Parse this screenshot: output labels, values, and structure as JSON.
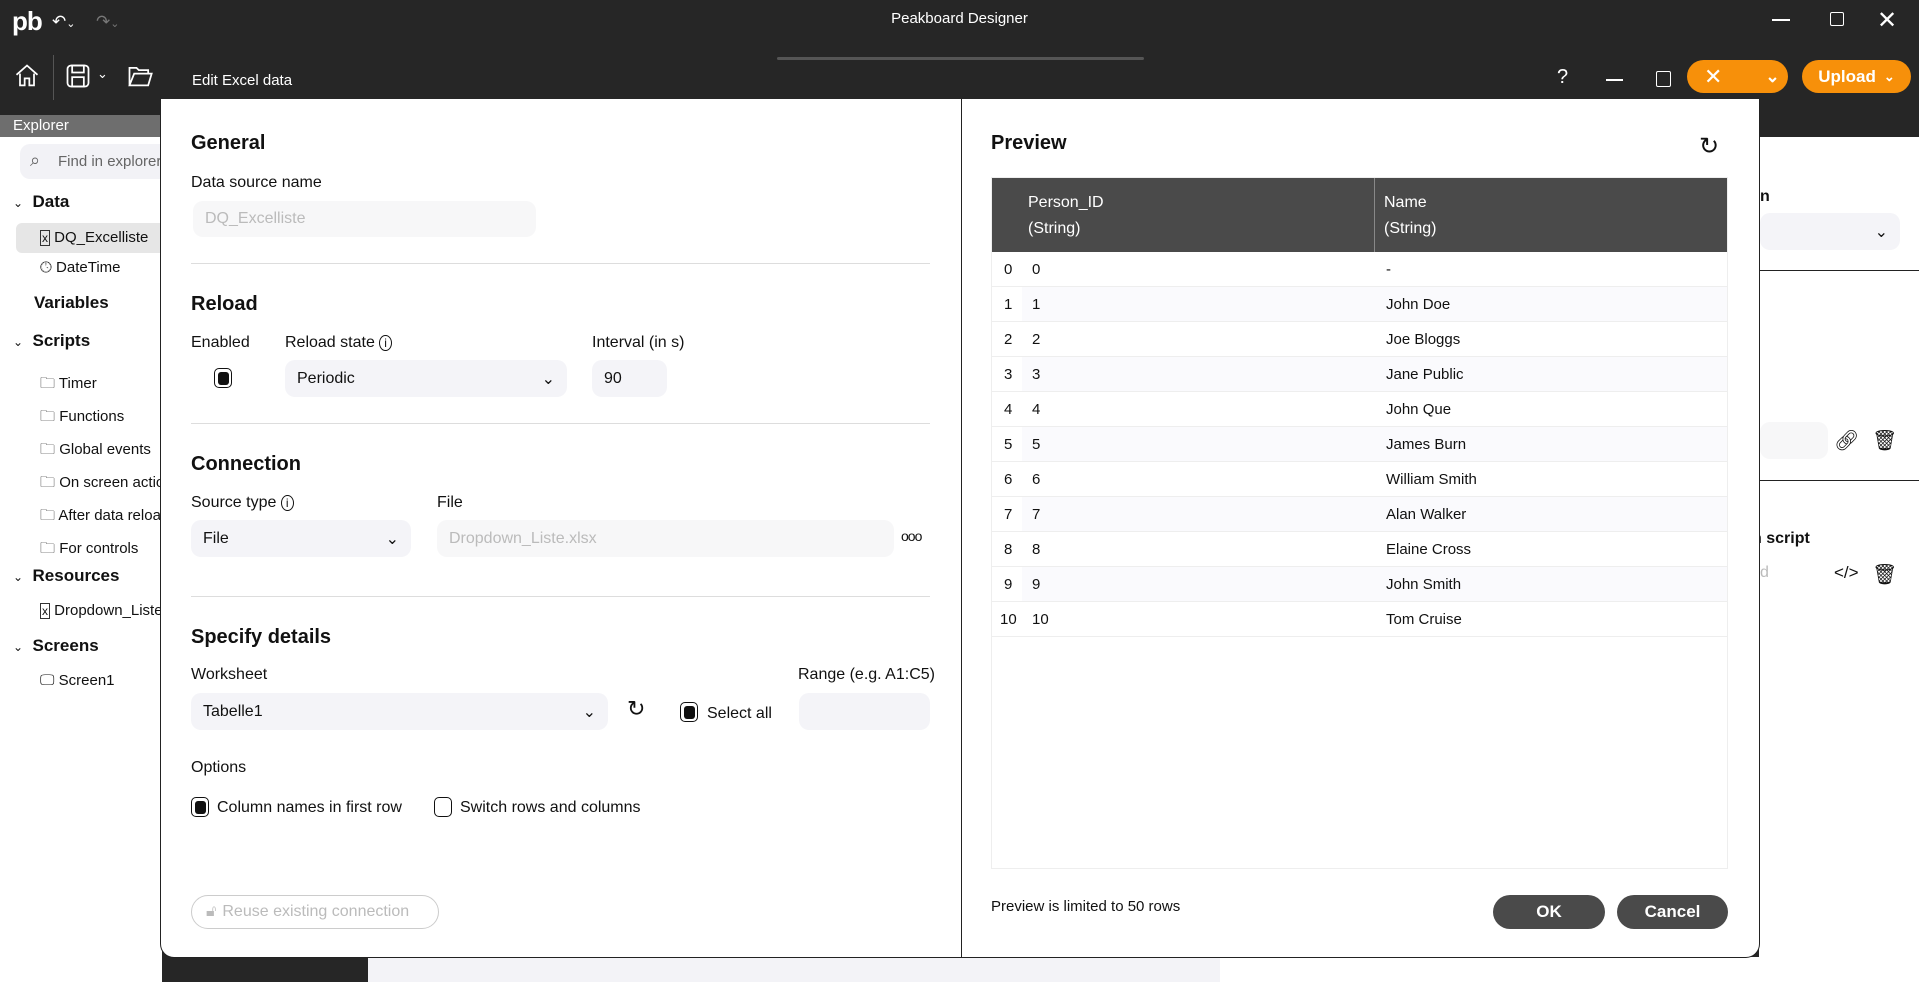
{
  "app": {
    "title": "Peakboard Designer",
    "logo": "pb"
  },
  "toolbar": {
    "upload_label": "Upload"
  },
  "explorer": {
    "header": "Explorer",
    "search_placeholder": "Find in explorer",
    "groups": {
      "data": "Data",
      "data_items": [
        "DQ_Excelliste",
        "DateTime"
      ],
      "variables": "Variables",
      "scripts": "Scripts",
      "script_items": [
        "Timer",
        "Functions",
        "Global events",
        "On screen actions",
        "After data reload",
        "For controls"
      ],
      "resources": "Resources",
      "resource_items": [
        "Dropdown_Liste.xlsx"
      ],
      "screens": "Screens",
      "screen_items": [
        "Screen1"
      ]
    }
  },
  "background_panel": {
    "label1": "n",
    "label2": "n script",
    "placeholder2": "d"
  },
  "dialog": {
    "title": "Edit Excel data",
    "general": {
      "heading": "General",
      "name_label": "Data source name",
      "name_value": "DQ_Excelliste"
    },
    "reload": {
      "heading": "Reload",
      "enabled_label": "Enabled",
      "enabled": true,
      "state_label": "Reload state",
      "state_value": "Periodic",
      "interval_label": "Interval (in s)",
      "interval_value": "90"
    },
    "connection": {
      "heading": "Connection",
      "source_type_label": "Source type",
      "source_type_value": "File",
      "file_label": "File",
      "file_value": "Dropdown_Liste.xlsx"
    },
    "details": {
      "heading": "Specify details",
      "worksheet_label": "Worksheet",
      "worksheet_value": "Tabelle1",
      "select_all_label": "Select all",
      "select_all": true,
      "range_label": "Range (e.g. A1:C5)",
      "range_value": "",
      "options_label": "Options",
      "opt_colnames_label": "Column names in first row",
      "opt_colnames": true,
      "opt_switch_label": "Switch rows and columns",
      "opt_switch": false
    },
    "reuse_label": "Reuse existing connection",
    "preview": {
      "heading": "Preview",
      "columns": [
        {
          "name": "Person_ID",
          "type": "(String)"
        },
        {
          "name": "Name",
          "type": "(String)"
        }
      ],
      "rows": [
        [
          "0",
          "0",
          "-"
        ],
        [
          "1",
          "1",
          "John Doe"
        ],
        [
          "2",
          "2",
          "Joe Bloggs"
        ],
        [
          "3",
          "3",
          "Jane Public"
        ],
        [
          "4",
          "4",
          "John Que"
        ],
        [
          "5",
          "5",
          "James Burn"
        ],
        [
          "6",
          "6",
          "William Smith"
        ],
        [
          "7",
          "7",
          "Alan Walker"
        ],
        [
          "8",
          "8",
          "Elaine Cross"
        ],
        [
          "9",
          "9",
          "John Smith"
        ],
        [
          "10",
          "10",
          "Tom Cruise"
        ]
      ],
      "footer": "Preview is limited to 50 rows"
    },
    "ok_label": "OK",
    "cancel_label": "Cancel"
  },
  "colors": {
    "accent": "#f7900a",
    "dark": "#262626",
    "button": "#4a4a4a"
  }
}
